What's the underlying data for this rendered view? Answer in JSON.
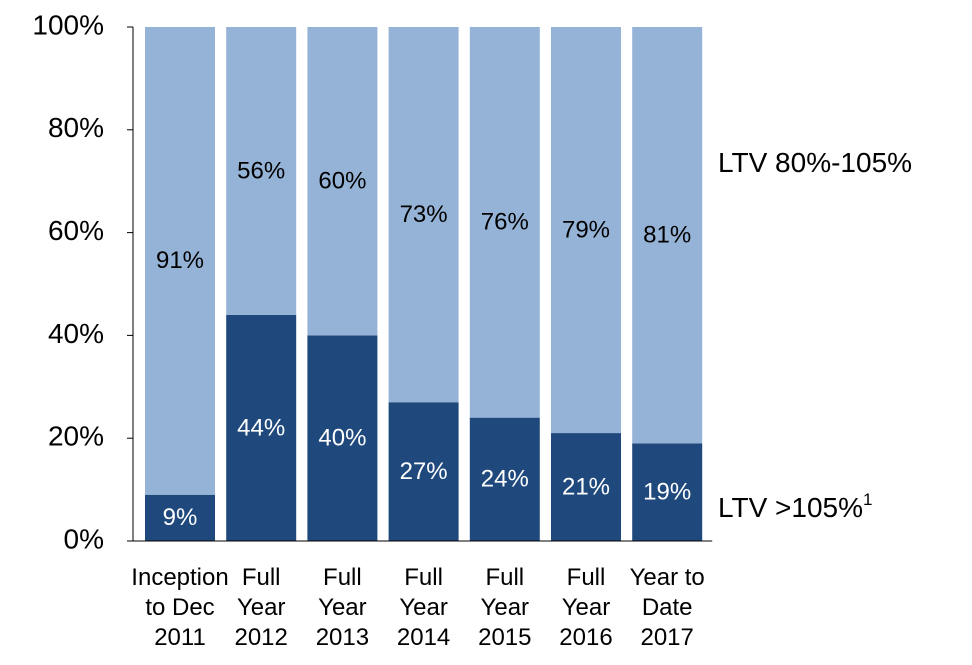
{
  "chart_data": {
    "type": "stacked_bar",
    "categories": [
      "Inception to Dec 2011",
      "Full Year 2012",
      "Full Year 2013",
      "Full Year 2014",
      "Full Year 2015",
      "Full Year 2016",
      "Year to Date 2017"
    ],
    "series": [
      {
        "name": "LTV >105%",
        "superscript": "1",
        "color": "#1f497d",
        "values": [
          9,
          44,
          40,
          27,
          24,
          21,
          19
        ],
        "value_labels": [
          "9%",
          "44%",
          "40%",
          "27%",
          "24%",
          "21%",
          "19%"
        ]
      },
      {
        "name": "LTV 80%-105%",
        "color": "#95b3d7",
        "values": [
          91,
          56,
          60,
          73,
          76,
          79,
          81
        ],
        "value_labels": [
          "91%",
          "56%",
          "60%",
          "73%",
          "76%",
          "79%",
          "81%"
        ]
      }
    ],
    "ylim": [
      0,
      100
    ],
    "yticks": [
      {
        "value": 0,
        "label": "0%"
      },
      {
        "value": 20,
        "label": "20%"
      },
      {
        "value": 40,
        "label": "40%"
      },
      {
        "value": 60,
        "label": "60%"
      },
      {
        "value": 80,
        "label": "80%"
      },
      {
        "value": 100,
        "label": "100%"
      }
    ]
  }
}
